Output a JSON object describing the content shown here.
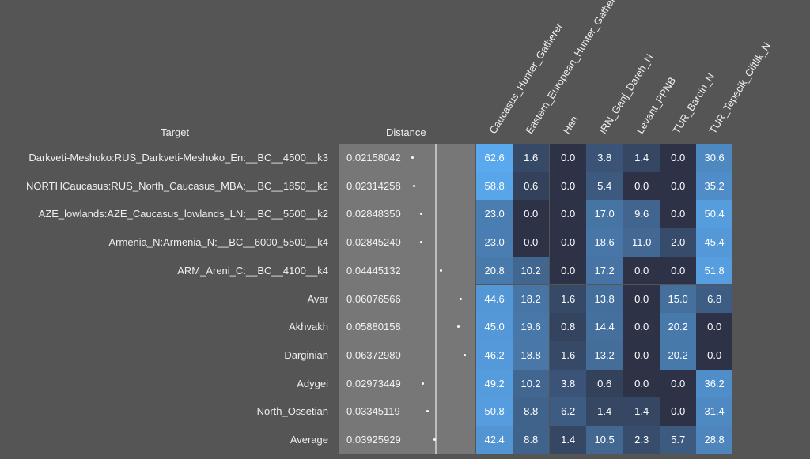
{
  "headers": {
    "target": "Target",
    "distance": "Distance"
  },
  "columns": [
    "Caucasus_Hunter_Gatherer",
    "Eastern_European_Hunter_Gatherer",
    "Han",
    "IRN_Ganj_Dareh_N",
    "Levant_PPNB",
    "TUR_Barcin_N",
    "TUR_Tepecik_Ciftlik_N"
  ],
  "rows": [
    {
      "target": "Darkveti-Meshoko:RUS_Darkveti-Meshoko_En:__BC__4500__k3",
      "distance": "0.02158042",
      "values": [
        "62.6",
        "1.6",
        "0.0",
        "3.8",
        "1.4",
        "0.0",
        "30.6"
      ]
    },
    {
      "target": "NORTHCaucasus:RUS_North_Caucasus_MBA:__BC__1850__k2",
      "distance": "0.02314258",
      "values": [
        "58.8",
        "0.6",
        "0.0",
        "5.4",
        "0.0",
        "0.0",
        "35.2"
      ]
    },
    {
      "target": "AZE_lowlands:AZE_Caucasus_lowlands_LN:__BC__5500__k2",
      "distance": "0.02848350",
      "values": [
        "23.0",
        "0.0",
        "0.0",
        "17.0",
        "9.6",
        "0.0",
        "50.4"
      ]
    },
    {
      "target": "Armenia_N:Armenia_N:__BC__6000_5500__k4",
      "distance": "0.02845240",
      "values": [
        "23.0",
        "0.0",
        "0.0",
        "18.6",
        "11.0",
        "2.0",
        "45.4"
      ]
    },
    {
      "target": "ARM_Areni_C:__BC__4100__k4",
      "distance": "0.04445132",
      "values": [
        "20.8",
        "10.2",
        "0.0",
        "17.2",
        "0.0",
        "0.0",
        "51.8"
      ]
    },
    {
      "target": "Avar",
      "distance": "0.06076566",
      "values": [
        "44.6",
        "18.2",
        "1.6",
        "13.8",
        "0.0",
        "15.0",
        "6.8"
      ]
    },
    {
      "target": "Akhvakh",
      "distance": "0.05880158",
      "values": [
        "45.0",
        "19.6",
        "0.8",
        "14.4",
        "0.0",
        "20.2",
        "0.0"
      ]
    },
    {
      "target": "Darginian",
      "distance": "0.06372980",
      "values": [
        "46.2",
        "18.8",
        "1.6",
        "13.2",
        "0.0",
        "20.2",
        "0.0"
      ]
    },
    {
      "target": "Adygei",
      "distance": "0.02973449",
      "values": [
        "49.2",
        "10.2",
        "3.8",
        "0.6",
        "0.0",
        "0.0",
        "36.2"
      ]
    },
    {
      "target": "North_Ossetian",
      "distance": "0.03345119",
      "values": [
        "50.8",
        "8.8",
        "6.2",
        "1.4",
        "1.4",
        "0.0",
        "31.4"
      ]
    },
    {
      "target": "Average",
      "distance": "0.03925929",
      "values": [
        "42.4",
        "8.8",
        "1.4",
        "10.5",
        "2.3",
        "5.7",
        "28.8"
      ]
    }
  ],
  "colors": {
    "background": "#555555",
    "distance_panel": "#777777",
    "heat_low": "#2e3246",
    "heat_high": "#5aa8ee"
  }
}
